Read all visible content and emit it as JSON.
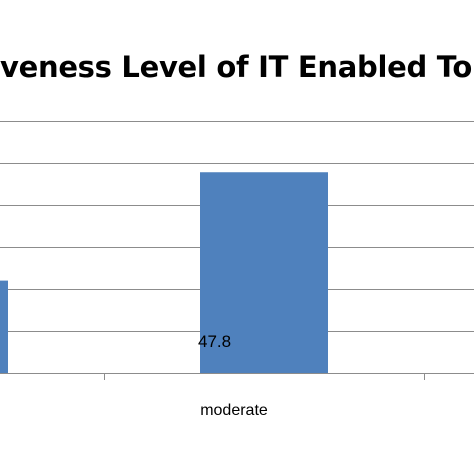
{
  "chart_data": {
    "type": "bar",
    "title": "veness Level of IT Enabled To",
    "xlabel": "",
    "ylabel": "",
    "categories": [
      "",
      "moderate",
      ""
    ],
    "values": [
      null,
      47.8,
      null
    ],
    "visible_values": [
      {
        "category": "",
        "value": 22
      },
      {
        "category": "moderate",
        "value": 47.8
      }
    ],
    "data_labels": [
      "",
      "47.8",
      ""
    ],
    "ylim": [
      0,
      60
    ],
    "grid": true,
    "bar_color": "#4F81BD"
  }
}
